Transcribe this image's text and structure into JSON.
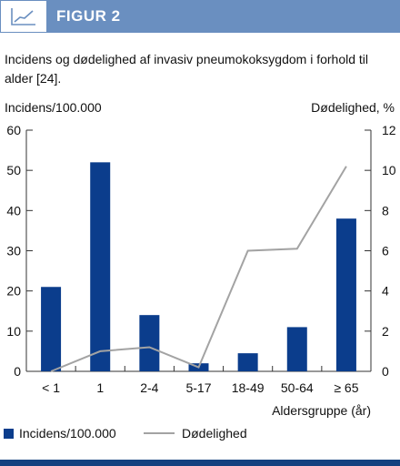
{
  "header": {
    "label": "FIGUR 2",
    "icon": "line-chart-icon"
  },
  "chart_data": {
    "type": "bar",
    "title": "Incidens og dødelighed af invasiv pneumokoksygdom i forhold til alder [24].",
    "ylabel": "Incidens/100.000",
    "y2label": "Dødelighed, %",
    "xlabel": "Aldersgruppe (år)",
    "categories": [
      "< 1",
      "1",
      "2-4",
      "5-17",
      "18-49",
      "50-64",
      "≥ 65"
    ],
    "ylim": [
      0,
      60
    ],
    "y2lim": [
      0,
      12
    ],
    "yticks": [
      "0",
      "10",
      "20",
      "30",
      "40",
      "50",
      "60"
    ],
    "y2ticks": [
      "0",
      "2",
      "4",
      "6",
      "8",
      "10",
      "12"
    ],
    "series": [
      {
        "name": "Incidens/100.000",
        "type": "bar",
        "axis": "left",
        "color": "#0b3d8c",
        "values": [
          21,
          52,
          14,
          2,
          4.5,
          11,
          38
        ]
      },
      {
        "name": "Dødelighed",
        "type": "line",
        "axis": "right",
        "color": "#a3a3a3",
        "values": [
          0,
          1,
          1.2,
          0.2,
          6,
          6.1,
          10.2
        ]
      }
    ],
    "legend": "bottom",
    "grid": false
  }
}
